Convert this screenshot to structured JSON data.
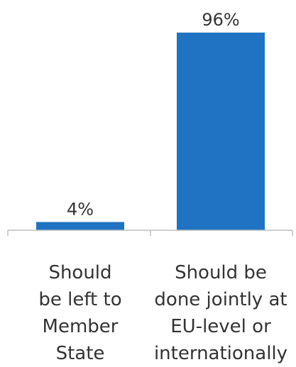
{
  "chart_data": {
    "type": "bar",
    "categories": [
      "Should\nbe left to\nMember\nState",
      "Should be\ndone jointly at\nEU-level or\ninternationally"
    ],
    "values": [
      4,
      96
    ],
    "value_labels": [
      "4%",
      "96%"
    ],
    "ylim": [
      0,
      100
    ],
    "grid": false,
    "bar_color": "#1f73c2",
    "axis_color": "#bfbfbf",
    "text_color": "#333333"
  }
}
